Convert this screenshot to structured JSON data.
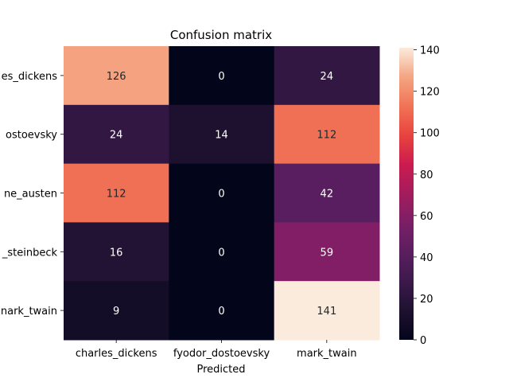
{
  "chart_data": {
    "type": "heatmap",
    "title": "Confusion matrix",
    "xlabel": "Predicted",
    "ylabel": "",
    "x_categories": [
      "charles_dickens",
      "fyodor_dostoevsky",
      "mark_twain"
    ],
    "y_categories": [
      "charles_dickens",
      "fyodor_dostoevsky",
      "jane_austen",
      "john_steinbeck",
      "mark_twain"
    ],
    "y_tick_labels_visible": [
      "es_dickens",
      "ostoevsky",
      "ne_austen",
      "_steinbeck",
      "nark_twain"
    ],
    "values": [
      [
        126,
        0,
        24
      ],
      [
        24,
        14,
        112
      ],
      [
        112,
        0,
        42
      ],
      [
        16,
        0,
        59
      ],
      [
        9,
        0,
        141
      ]
    ],
    "colorbar": {
      "min": 0,
      "max": 141,
      "ticks": [
        0,
        20,
        40,
        60,
        80,
        100,
        120,
        140
      ],
      "colormap": "rocket"
    }
  }
}
